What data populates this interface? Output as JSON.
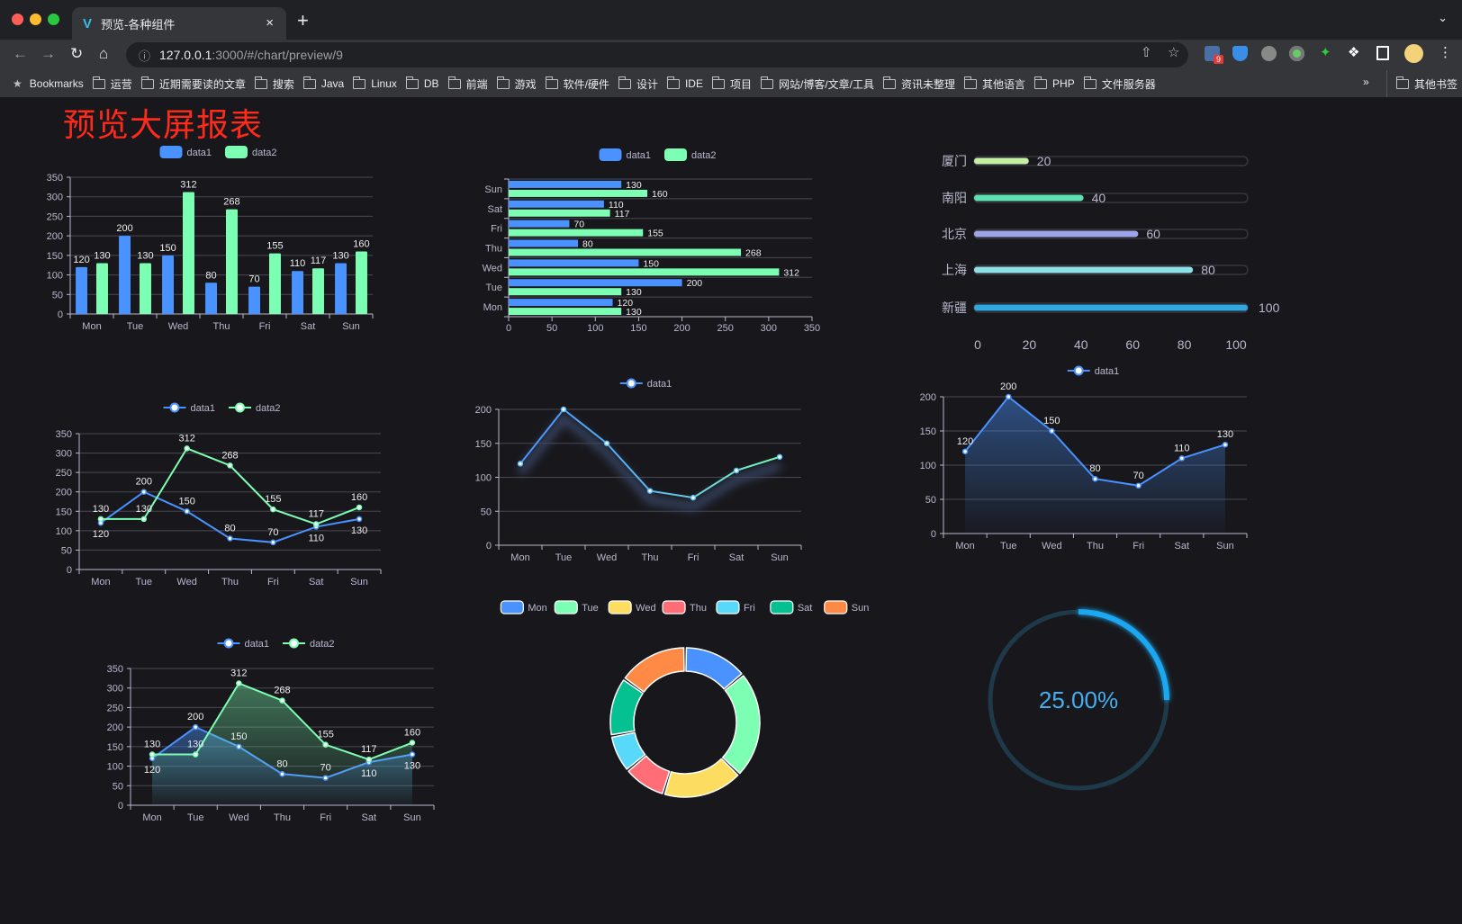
{
  "browser": {
    "tab_title": "预览-各种组件",
    "tab_close": "×",
    "new_tab": "+",
    "url_host": "127.0.0.1",
    "url_rest": ":3000/#/chart/preview/9",
    "bookmarks_label": "Bookmarks",
    "bookmark_folders": [
      "运营",
      "近期需要读的文章",
      "搜索",
      "Java",
      "Linux",
      "DB",
      "前端",
      "游戏",
      "软件/硬件",
      "设计",
      "IDE",
      "项目",
      "网站/博客/文章/工具",
      "资讯未整理",
      "其他语言",
      "PHP",
      "文件服务器"
    ],
    "bookmarks_overflow": "»",
    "other_bookmarks": "其他书签",
    "extension_badge": "9"
  },
  "page": {
    "title": "预览大屏报表",
    "title_color": "#ff2a1a"
  },
  "colors": {
    "background": "#18181c",
    "data1": "#4992ff",
    "data2": "#7cffb2",
    "axis_text": "#b9b8ce",
    "grid": "#484753"
  },
  "chart_data": [
    {
      "type": "bar",
      "orientation": "vertical",
      "categories": [
        "Mon",
        "Tue",
        "Wed",
        "Thu",
        "Fri",
        "Sat",
        "Sun"
      ],
      "series": [
        {
          "name": "data1",
          "values": [
            120,
            200,
            150,
            80,
            70,
            110,
            130
          ]
        },
        {
          "name": "data2",
          "values": [
            130,
            130,
            312,
            268,
            155,
            117,
            160
          ]
        }
      ],
      "ylim": [
        0,
        350
      ],
      "yticks": [
        0,
        50,
        100,
        150,
        200,
        250,
        300,
        350
      ],
      "legend": "top-center",
      "grid": true,
      "data_labels": true
    },
    {
      "type": "bar",
      "orientation": "horizontal",
      "categories": [
        "Mon",
        "Tue",
        "Wed",
        "Thu",
        "Fri",
        "Sat",
        "Sun"
      ],
      "series": [
        {
          "name": "data1",
          "values": [
            120,
            200,
            150,
            80,
            70,
            110,
            130
          ]
        },
        {
          "name": "data2",
          "values": [
            130,
            130,
            312,
            268,
            155,
            117,
            160
          ]
        }
      ],
      "xlim": [
        0,
        350
      ],
      "xticks": [
        0,
        50,
        100,
        150,
        200,
        250,
        300,
        350
      ],
      "legend": "top-center",
      "grid": true,
      "data_labels": true
    },
    {
      "type": "bar",
      "orientation": "horizontal",
      "style": "progress",
      "categories": [
        "厦门",
        "南阳",
        "北京",
        "上海",
        "新疆"
      ],
      "values": [
        20,
        40,
        60,
        80,
        100
      ],
      "colors": [
        "#c5f0a4",
        "#5fe0b0",
        "#9fa4e8",
        "#8fdfe8",
        "#2fa8e0"
      ],
      "xlim": [
        0,
        100
      ],
      "xticks": [
        0,
        20,
        40,
        60,
        80,
        100
      ],
      "data_labels": true
    },
    {
      "type": "line",
      "categories": [
        "Mon",
        "Tue",
        "Wed",
        "Thu",
        "Fri",
        "Sat",
        "Sun"
      ],
      "series": [
        {
          "name": "data1",
          "values": [
            120,
            200,
            150,
            80,
            70,
            110,
            130
          ]
        },
        {
          "name": "data2",
          "values": [
            130,
            130,
            312,
            268,
            155,
            117,
            160
          ]
        }
      ],
      "ylim": [
        0,
        350
      ],
      "yticks": [
        0,
        50,
        100,
        150,
        200,
        250,
        300,
        350
      ],
      "legend": "top-center",
      "grid": true,
      "data_labels": true
    },
    {
      "type": "line",
      "categories": [
        "Mon",
        "Tue",
        "Wed",
        "Thu",
        "Fri",
        "Sat",
        "Sun"
      ],
      "series": [
        {
          "name": "data1",
          "values": [
            120,
            200,
            150,
            80,
            70,
            110,
            130
          ]
        }
      ],
      "ylim": [
        0,
        200
      ],
      "yticks": [
        0,
        50,
        100,
        150,
        200
      ],
      "legend": "top-center",
      "grid": true,
      "data_labels": false
    },
    {
      "type": "area",
      "categories": [
        "Mon",
        "Tue",
        "Wed",
        "Thu",
        "Fri",
        "Sat",
        "Sun"
      ],
      "series": [
        {
          "name": "data1",
          "values": [
            120,
            200,
            150,
            80,
            70,
            110,
            130
          ]
        }
      ],
      "ylim": [
        0,
        200
      ],
      "yticks": [
        0,
        50,
        100,
        150,
        200
      ],
      "legend": "top-center",
      "grid": true,
      "data_labels": true
    },
    {
      "type": "pie",
      "style": "donut",
      "categories": [
        "Mon",
        "Tue",
        "Wed",
        "Thu",
        "Fri",
        "Sat",
        "Sun"
      ],
      "values": [
        120,
        200,
        150,
        80,
        70,
        110,
        130
      ],
      "colors": [
        "#4992ff",
        "#7cffb2",
        "#fddd60",
        "#ff6e76",
        "#58d9f9",
        "#05c091",
        "#ff8a45"
      ],
      "legend": "top-center"
    },
    {
      "type": "area",
      "categories": [
        "Mon",
        "Tue",
        "Wed",
        "Thu",
        "Fri",
        "Sat",
        "Sun"
      ],
      "series": [
        {
          "name": "data1",
          "values": [
            120,
            200,
            150,
            80,
            70,
            110,
            130
          ]
        },
        {
          "name": "data2",
          "values": [
            130,
            130,
            312,
            268,
            155,
            117,
            160
          ]
        }
      ],
      "ylim": [
        0,
        350
      ],
      "yticks": [
        0,
        50,
        100,
        150,
        200,
        250,
        300,
        350
      ],
      "legend": "top-center",
      "grid": true,
      "data_labels": true
    },
    {
      "type": "gauge",
      "value": 25,
      "max": 100,
      "label": "25.00%",
      "color": "#1aa8f0"
    }
  ]
}
